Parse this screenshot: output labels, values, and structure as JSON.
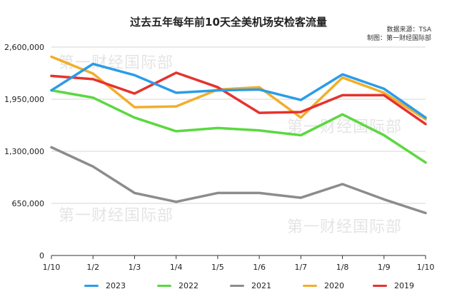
{
  "chart_data": {
    "type": "line",
    "title": "过去五年每年前10天全美机场安检客流量",
    "source_note": "数据来源：TSA",
    "credit_note": "制图：第一财经国际部",
    "watermark": "第一财经国际部",
    "categories": [
      "1/10",
      "1/2",
      "1/3",
      "1/4",
      "1/5",
      "1/6",
      "1/7",
      "1/8",
      "1/9",
      "1/10"
    ],
    "y_ticks": [
      "0",
      "650,000",
      "1,300,000",
      "1,950,000",
      "2,600,000"
    ],
    "ylim": [
      0,
      2600000
    ],
    "grid": true,
    "legend_position": "bottom",
    "series": [
      {
        "name": "2023",
        "color": "#2b9ce8",
        "values": [
          2060000,
          2390000,
          2250000,
          2030000,
          2060000,
          2070000,
          1940000,
          2260000,
          2080000,
          1720000
        ]
      },
      {
        "name": "2022",
        "color": "#5bd840",
        "values": [
          2060000,
          1970000,
          1720000,
          1550000,
          1590000,
          1560000,
          1500000,
          1760000,
          1500000,
          1160000
        ]
      },
      {
        "name": "2021",
        "color": "#8c8c8c",
        "values": [
          1350000,
          1110000,
          780000,
          670000,
          780000,
          780000,
          720000,
          890000,
          700000,
          530000
        ]
      },
      {
        "name": "2020",
        "color": "#f2ae2a",
        "values": [
          2480000,
          2270000,
          1850000,
          1860000,
          2070000,
          2100000,
          1720000,
          2220000,
          2030000,
          1700000
        ]
      },
      {
        "name": "2019",
        "color": "#e6322e",
        "values": [
          2240000,
          2200000,
          2020000,
          2280000,
          2100000,
          1780000,
          1790000,
          2000000,
          2000000,
          1640000
        ]
      }
    ]
  }
}
